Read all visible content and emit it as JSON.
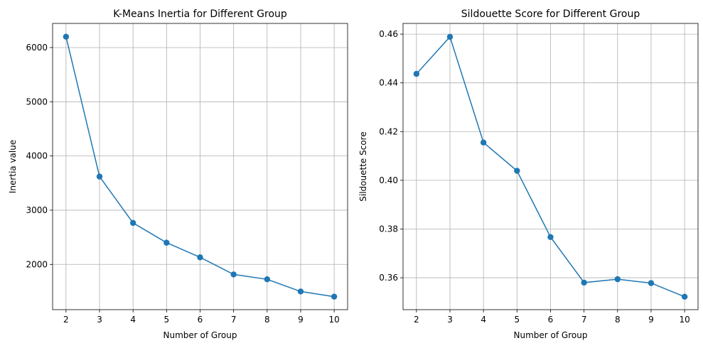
{
  "chart_data": [
    {
      "type": "line",
      "title": "K-Means Inertia for Different Group",
      "xlabel": "Number of Group",
      "ylabel": "Inertia value",
      "x": [
        2,
        3,
        4,
        5,
        6,
        7,
        8,
        9,
        10
      ],
      "series": [
        {
          "values": [
            6200,
            3620,
            2765,
            2400,
            2130,
            1815,
            1725,
            1500,
            1405
          ],
          "color": "#1f77b4",
          "marker": "circle"
        }
      ],
      "xlim": [
        1.6,
        10.4
      ],
      "ylim": [
        1165,
        6445
      ],
      "xticks": [
        2,
        3,
        4,
        5,
        6,
        7,
        8,
        9,
        10
      ],
      "xtick_labels": [
        "2",
        "3",
        "4",
        "5",
        "6",
        "7",
        "8",
        "9",
        "10"
      ],
      "yticks": [
        2000,
        3000,
        4000,
        5000,
        6000
      ],
      "ytick_labels": [
        "2000",
        "3000",
        "4000",
        "5000",
        "6000"
      ],
      "grid": true
    },
    {
      "type": "line",
      "title": "Sildouette Score for Different Group",
      "xlabel": "Number of Group",
      "ylabel": "Sildouette Score",
      "x": [
        2,
        3,
        4,
        5,
        6,
        7,
        8,
        9,
        10
      ],
      "series": [
        {
          "values": [
            0.4437,
            0.4589,
            0.4155,
            0.4039,
            0.3767,
            0.358,
            0.3594,
            0.3578,
            0.3522
          ],
          "color": "#1f77b4",
          "marker": "circle"
        }
      ],
      "xlim": [
        1.6,
        10.4
      ],
      "ylim": [
        0.3469,
        0.4644
      ],
      "xticks": [
        2,
        3,
        4,
        5,
        6,
        7,
        8,
        9,
        10
      ],
      "xtick_labels": [
        "2",
        "3",
        "4",
        "5",
        "6",
        "7",
        "8",
        "9",
        "10"
      ],
      "yticks": [
        0.36,
        0.38,
        0.4,
        0.42,
        0.44,
        0.46
      ],
      "ytick_labels": [
        "0.36",
        "0.38",
        "0.40",
        "0.42",
        "0.44",
        "0.46"
      ],
      "grid": true
    }
  ]
}
